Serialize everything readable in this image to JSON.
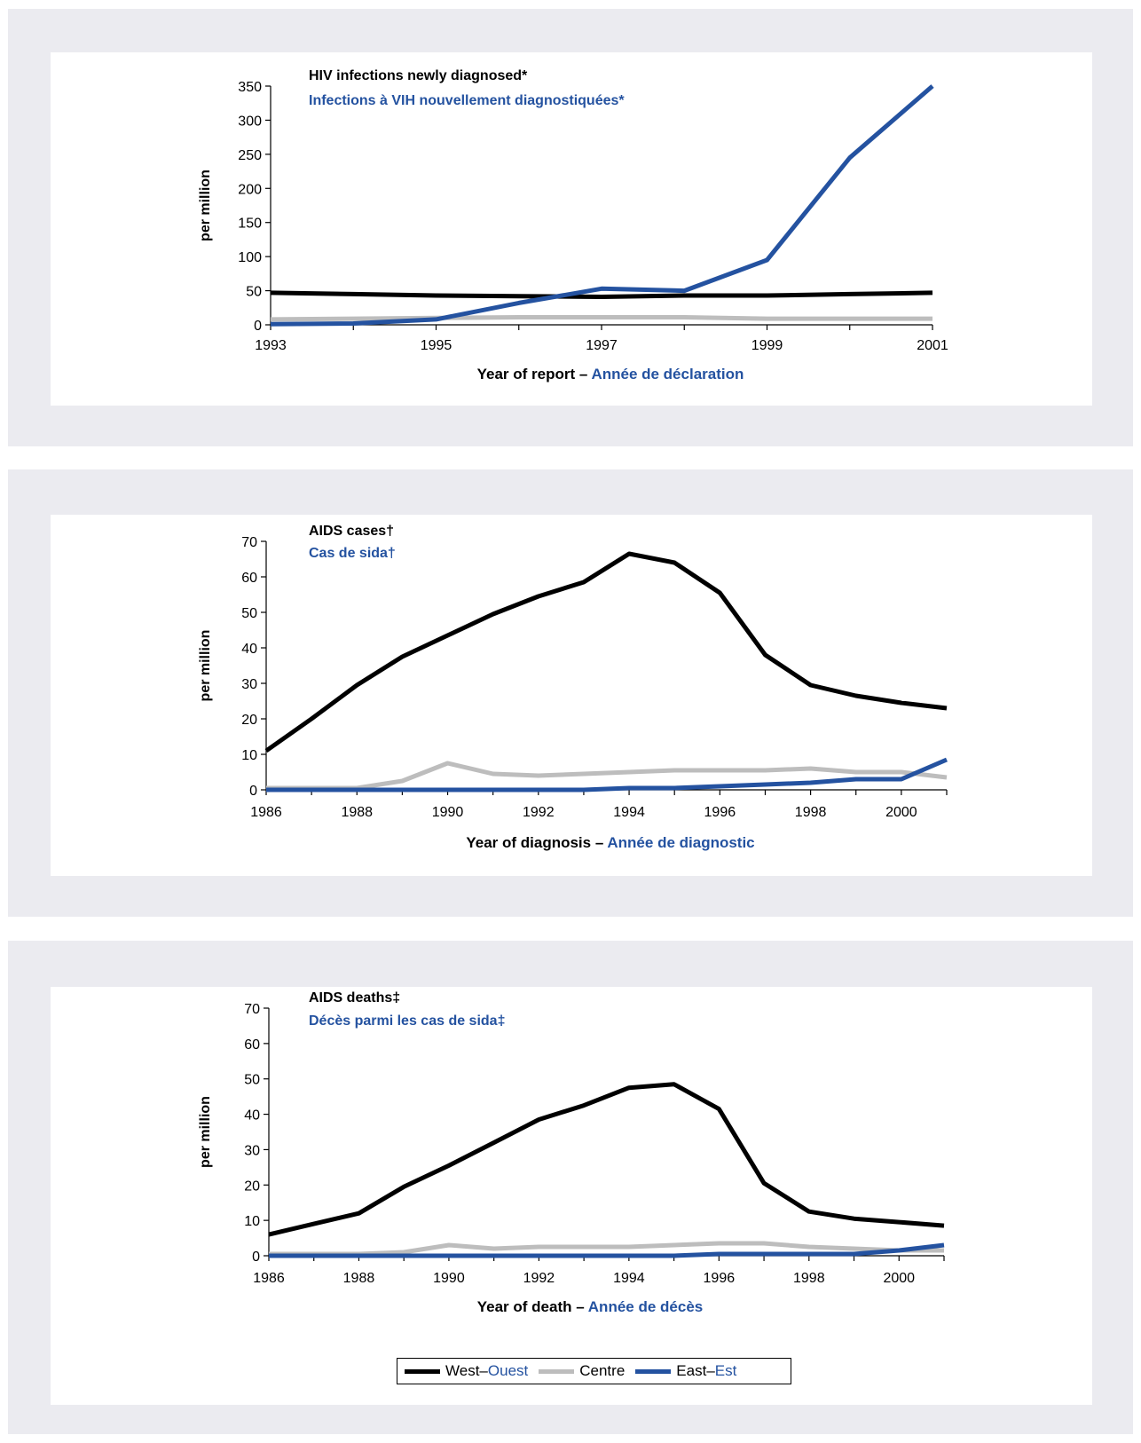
{
  "colors": {
    "west": "#000000",
    "centre": "#bdbdbd",
    "east": "#2452a0"
  },
  "legend": [
    {
      "key": "west",
      "en": "West",
      "sep": " – ",
      "fr": "Ouest"
    },
    {
      "key": "centre",
      "en": "Centre",
      "sep": "",
      "fr": ""
    },
    {
      "key": "east",
      "en": "East",
      "sep": " – ",
      "fr": "Est"
    }
  ],
  "chart_data": [
    {
      "type": "line",
      "title": "HIV infections newly diagnosed*",
      "subtitle": "Infections à VIH nouvellement diagnostiquées*",
      "ylabel": "per million",
      "xlabel": "Year of report",
      "xlabel_fr": "Année de déclaration",
      "ylim": [
        0,
        350
      ],
      "yticks": [
        0,
        50,
        100,
        150,
        200,
        250,
        300,
        350
      ],
      "xlim": [
        1993,
        2001
      ],
      "xticks": [
        1993,
        1995,
        1997,
        1999,
        2001
      ],
      "x": [
        1993,
        1994,
        1995,
        1996,
        1997,
        1998,
        1999,
        2000,
        2001
      ],
      "series": [
        {
          "key": "west",
          "values": [
            47,
            45,
            43,
            42,
            41,
            43,
            43,
            45,
            47
          ]
        },
        {
          "key": "centre",
          "values": [
            8,
            9,
            10,
            11,
            11,
            11,
            9,
            9,
            9
          ]
        },
        {
          "key": "east",
          "values": [
            1,
            2,
            8,
            32,
            53,
            50,
            95,
            245,
            350
          ]
        }
      ]
    },
    {
      "type": "line",
      "title": "AIDS cases†",
      "subtitle": "Cas de sida†",
      "ylabel": "per million",
      "xlabel": "Year of diagnosis",
      "xlabel_fr": "Année de diagnostic",
      "ylim": [
        0,
        70
      ],
      "yticks": [
        0,
        10,
        20,
        30,
        40,
        50,
        60,
        70
      ],
      "xlim": [
        1986,
        2001
      ],
      "xticks": [
        1986,
        1988,
        1990,
        1992,
        1994,
        1996,
        1998,
        2000
      ],
      "x": [
        1986,
        1987,
        1988,
        1989,
        1990,
        1991,
        1992,
        1993,
        1994,
        1995,
        1996,
        1997,
        1998,
        1999,
        2000,
        2001
      ],
      "series": [
        {
          "key": "west",
          "values": [
            11,
            20,
            29.5,
            37.5,
            43.5,
            49.5,
            54.5,
            58.5,
            66.5,
            64,
            55.5,
            38,
            29.5,
            26.5,
            24.5,
            23
          ]
        },
        {
          "key": "centre",
          "values": [
            0.5,
            0.5,
            0.5,
            2.5,
            7.5,
            4.5,
            4,
            4.5,
            5,
            5.5,
            5.5,
            5.5,
            6,
            5,
            5,
            3.5
          ]
        },
        {
          "key": "east",
          "values": [
            0,
            0,
            0,
            0,
            0,
            0,
            0,
            0,
            0.5,
            0.5,
            1,
            1.5,
            2,
            3,
            3,
            8.5
          ]
        }
      ]
    },
    {
      "type": "line",
      "title": "AIDS deaths‡",
      "subtitle": "Décès parmi les cas de sida‡",
      "ylabel": "per million",
      "xlabel": "Year of death",
      "xlabel_fr": "Année de décès",
      "ylim": [
        0,
        70
      ],
      "yticks": [
        0,
        10,
        20,
        30,
        40,
        50,
        60,
        70
      ],
      "xlim": [
        1986,
        2001
      ],
      "xticks": [
        1986,
        1988,
        1990,
        1992,
        1994,
        1996,
        1998,
        2000
      ],
      "x": [
        1986,
        1987,
        1988,
        1989,
        1990,
        1991,
        1992,
        1993,
        1994,
        1995,
        1996,
        1997,
        1998,
        1999,
        2000,
        2001
      ],
      "series": [
        {
          "key": "west",
          "values": [
            6,
            9,
            12,
            19.5,
            25.5,
            32,
            38.5,
            42.5,
            47.5,
            48.5,
            41.5,
            20.5,
            12.5,
            10.5,
            9.5,
            8.5
          ]
        },
        {
          "key": "centre",
          "values": [
            0.5,
            0.5,
            0.5,
            1,
            3,
            2,
            2.5,
            2.5,
            2.5,
            3,
            3.5,
            3.5,
            2.5,
            2,
            1.5,
            1.5
          ]
        },
        {
          "key": "east",
          "values": [
            0,
            0,
            0,
            0,
            0,
            0,
            0,
            0,
            0,
            0,
            0.5,
            0.5,
            0.5,
            0.5,
            1.5,
            3
          ]
        }
      ]
    }
  ]
}
